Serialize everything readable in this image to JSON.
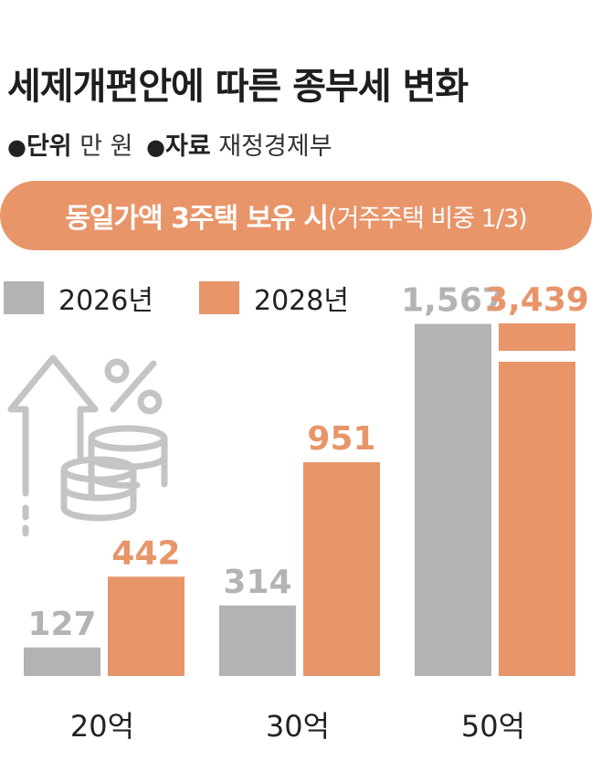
{
  "title": "세제개편안에 따른 종부세 변화",
  "meta": {
    "unit_key": "단위",
    "unit_value": "만 원",
    "source_key": "자료",
    "source_value": "재정경제부"
  },
  "banner": {
    "main": "동일가액 3주택 보유 시",
    "sub": "(거주주택 비중 1/3)"
  },
  "colors": {
    "series_2026": "#b3b3b3",
    "series_2028": "#e8956a"
  },
  "chart_data": {
    "type": "bar",
    "categories": [
      "20억",
      "30억",
      "50억"
    ],
    "series": [
      {
        "name": "2026년",
        "values": [
          127,
          314,
          1567
        ],
        "labels": [
          "127",
          "314",
          "1,567"
        ]
      },
      {
        "name": "2028년",
        "values": [
          442,
          951,
          3439
        ],
        "labels": [
          "442",
          "951",
          "3,439"
        ]
      }
    ],
    "axis_break": {
      "series": 1,
      "category": 2
    },
    "title": "세제개편안에 따른 종부세 변화",
    "ylabel": "",
    "xlabel": "",
    "grid": false,
    "legend": "top-left"
  }
}
